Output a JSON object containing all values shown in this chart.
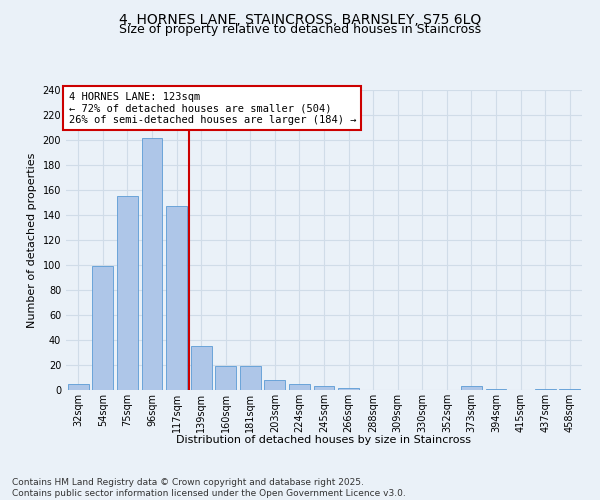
{
  "title_line1": "4, HORNES LANE, STAINCROSS, BARNSLEY, S75 6LQ",
  "title_line2": "Size of property relative to detached houses in Staincross",
  "xlabel": "Distribution of detached houses by size in Staincross",
  "ylabel": "Number of detached properties",
  "categories": [
    "32sqm",
    "54sqm",
    "75sqm",
    "96sqm",
    "117sqm",
    "139sqm",
    "160sqm",
    "181sqm",
    "203sqm",
    "224sqm",
    "245sqm",
    "266sqm",
    "288sqm",
    "309sqm",
    "330sqm",
    "352sqm",
    "373sqm",
    "394sqm",
    "415sqm",
    "437sqm",
    "458sqm"
  ],
  "values": [
    5,
    99,
    155,
    202,
    147,
    35,
    19,
    19,
    8,
    5,
    3,
    2,
    0,
    0,
    0,
    0,
    3,
    1,
    0,
    1,
    1
  ],
  "bar_color": "#aec6e8",
  "bar_edge_color": "#5b9bd5",
  "grid_color": "#d0dce8",
  "background_color": "#eaf1f8",
  "vline_x_index": 4,
  "vline_color": "#cc0000",
  "annotation_text": "4 HORNES LANE: 123sqm\n← 72% of detached houses are smaller (504)\n26% of semi-detached houses are larger (184) →",
  "annotation_box_color": "#ffffff",
  "annotation_box_edge": "#cc0000",
  "ylim": [
    0,
    240
  ],
  "yticks": [
    0,
    20,
    40,
    60,
    80,
    100,
    120,
    140,
    160,
    180,
    200,
    220,
    240
  ],
  "footer_line1": "Contains HM Land Registry data © Crown copyright and database right 2025.",
  "footer_line2": "Contains public sector information licensed under the Open Government Licence v3.0.",
  "title_fontsize": 10,
  "subtitle_fontsize": 9,
  "label_fontsize": 8,
  "tick_fontsize": 7,
  "annotation_fontsize": 7.5,
  "footer_fontsize": 6.5
}
